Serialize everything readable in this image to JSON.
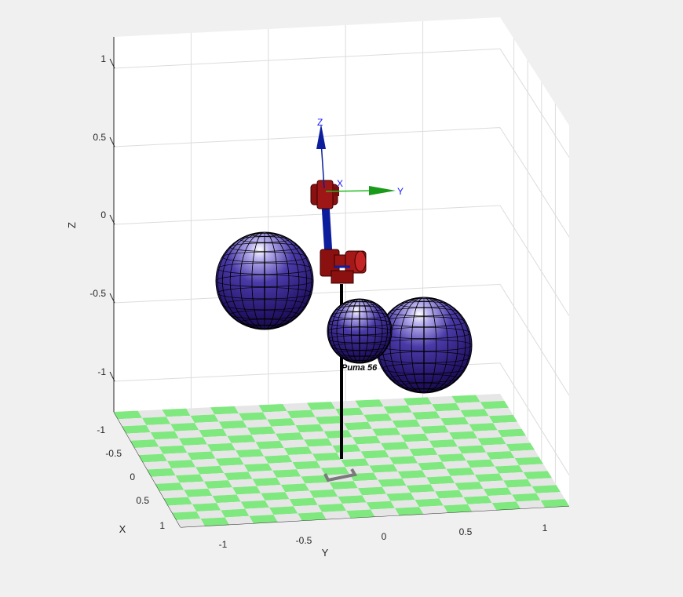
{
  "figure": {
    "background": "#f0f0f0",
    "axes_background": "#ffffff",
    "grid_color": "#dcdcdc",
    "floor_colors": [
      "#7fe87f",
      "#e6e6e6"
    ],
    "sphere_color": "#2c1c7a",
    "link_color": "#8b0e0e",
    "arm_color": "#0c1e9c"
  },
  "axes": {
    "xlabel": "X",
    "ylabel": "Y",
    "zlabel": "Z",
    "x_ticks": [
      "-1",
      "-0.5",
      "0",
      "0.5",
      "1"
    ],
    "y_ticks": [
      "-1",
      "-0.5",
      "0",
      "0.5",
      "1"
    ],
    "z_ticks": [
      "1",
      "0.5",
      "0",
      "-0.5",
      "-1"
    ],
    "xlim": [
      -1,
      1
    ],
    "ylim": [
      -1,
      1
    ],
    "zlim": [
      -1,
      1
    ]
  },
  "robot": {
    "name": "Puma 560",
    "name_visible": "Puma 56",
    "frame_labels": {
      "x": "X",
      "y": "Y",
      "z": "Z"
    }
  },
  "obstacles": [
    {
      "name": "sphere-left"
    },
    {
      "name": "sphere-middle"
    },
    {
      "name": "sphere-right"
    }
  ]
}
